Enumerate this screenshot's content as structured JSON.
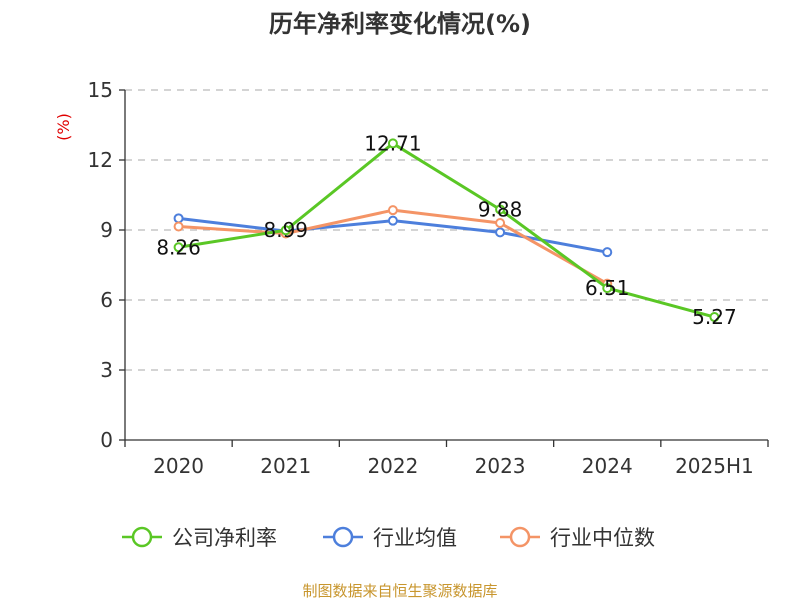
{
  "chart_data": {
    "type": "line",
    "title": "历年净利率变化情况(%)",
    "ylabel": "(%)",
    "categories": [
      "2020",
      "2021",
      "2022",
      "2023",
      "2024",
      "2025H1"
    ],
    "ylim": [
      0,
      15
    ],
    "yticks": [
      "0",
      "3",
      "6",
      "9",
      "12",
      "15"
    ],
    "grid": true,
    "legend_position": "bottom",
    "series": [
      {
        "name": "公司净利率",
        "color": "#5ac725",
        "values": [
          8.26,
          8.99,
          12.71,
          9.88,
          6.51,
          5.27
        ],
        "labels": [
          "8.26",
          "8.99",
          "12.71",
          "9.88",
          "6.51",
          "5.27"
        ]
      },
      {
        "name": "行业均值",
        "color": "#4d7fdc",
        "values": [
          9.5,
          8.95,
          9.4,
          8.9,
          8.05,
          null
        ]
      },
      {
        "name": "行业中位数",
        "color": "#f49466",
        "values": [
          9.15,
          8.85,
          9.85,
          9.3,
          6.7,
          null
        ]
      }
    ]
  },
  "footer": {
    "source": "制图数据来自恒生聚源数据库"
  }
}
